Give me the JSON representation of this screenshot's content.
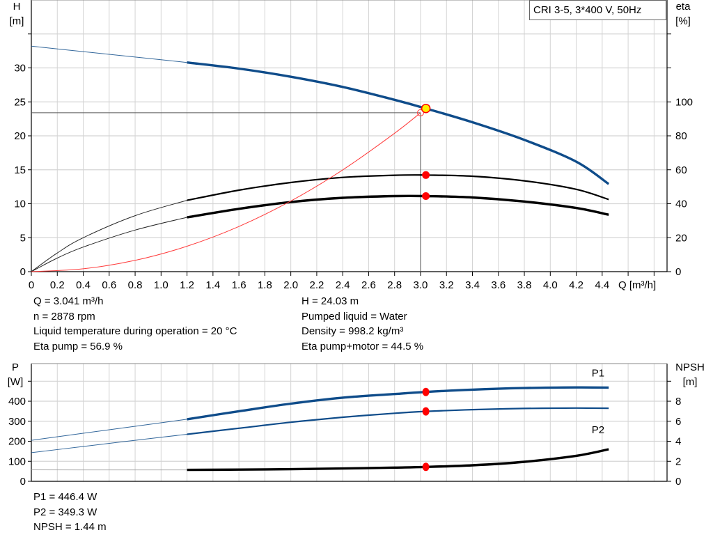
{
  "colors": {
    "head": "#0f4c8a",
    "power": "#0f4c8a",
    "eta": "#000000",
    "npsh": "#000000",
    "system": "#ff3b3b",
    "marker": "#ff0000",
    "operating_point_fill": "#ffee00",
    "grid": "#d4d4d4"
  },
  "chart_data": [
    {
      "type": "line",
      "title": "CRI 3-5, 3*400 V, 50Hz",
      "xlabel": "Q [m³/h]",
      "ylabel": [
        "H",
        "[m]"
      ],
      "y2label": [
        "eta",
        "[%]"
      ],
      "xlim": [
        0,
        4.9
      ],
      "ylim": [
        0,
        40
      ],
      "y2lim": [
        0,
        160
      ],
      "grid": true,
      "xticks": [
        "0",
        "0.2",
        "0.4",
        "0.6",
        "0.8",
        "1.0",
        "1.2",
        "1.4",
        "1.6",
        "1.8",
        "2.0",
        "2.2",
        "2.4",
        "2.6",
        "2.8",
        "3.0",
        "3.2",
        "3.4",
        "3.6",
        "3.8",
        "4.0",
        "4.2",
        "4.4"
      ],
      "yticks": [
        "0",
        "5",
        "10",
        "15",
        "20",
        "25",
        "30"
      ],
      "y2ticks": [
        "0",
        "20",
        "40",
        "60",
        "80",
        "100"
      ],
      "series": [
        {
          "key": "H",
          "axis": "left",
          "thick_from": 1.2,
          "x": [
            0,
            0.4,
            0.8,
            1.2,
            1.6,
            2.0,
            2.4,
            2.8,
            3.041,
            3.4,
            3.8,
            4.2,
            4.45
          ],
          "y": [
            33.2,
            32.4,
            31.6,
            30.8,
            29.9,
            28.7,
            27.2,
            25.3,
            24.03,
            22.0,
            19.4,
            16.2,
            12.9
          ]
        },
        {
          "key": "eta_pump",
          "axis": "right",
          "thick_from": 1.2,
          "x": [
            0,
            0.2,
            0.4,
            0.8,
            1.2,
            1.6,
            2.0,
            2.4,
            2.8,
            3.041,
            3.4,
            3.8,
            4.2,
            4.45
          ],
          "y": [
            0,
            11,
            20,
            33,
            42,
            48,
            52.5,
            55.5,
            56.8,
            56.9,
            56.2,
            53.5,
            48.5,
            42.5
          ]
        },
        {
          "key": "eta_pump_motor",
          "axis": "right",
          "thick_from": 1.2,
          "x": [
            0,
            0.2,
            0.4,
            0.8,
            1.2,
            1.6,
            2.0,
            2.4,
            2.8,
            3.041,
            3.4,
            3.8,
            4.2,
            4.45
          ],
          "y": [
            0,
            8,
            14.5,
            24.5,
            32,
            37,
            41,
            43.5,
            44.5,
            44.5,
            43.7,
            41.3,
            37.5,
            33.5
          ]
        },
        {
          "key": "system_curve",
          "axis": "left",
          "x": [
            0,
            0.4,
            0.8,
            1.2,
            1.6,
            2.0,
            2.4,
            2.8,
            3.0
          ],
          "y": [
            0,
            0.42,
            1.66,
            3.74,
            6.65,
            10.4,
            14.98,
            20.38,
            23.4
          ]
        }
      ],
      "guide_point": {
        "x": 3.0,
        "y": 23.4
      },
      "operating_point": {
        "x": 3.041,
        "H": 24.03,
        "eta_pump": 56.9,
        "eta_pump_motor": 44.5
      }
    },
    {
      "type": "line",
      "xlabel": "",
      "ylabel": [
        "P",
        "[W]"
      ],
      "y2label": [
        "NPSH",
        "[m]"
      ],
      "xlim": [
        0,
        4.9
      ],
      "ylim": [
        0,
        588
      ],
      "y2lim": [
        0,
        11.76
      ],
      "grid": true,
      "yticks": [
        "0",
        "100",
        "200",
        "300",
        "400"
      ],
      "y2ticks": [
        "0",
        "2",
        "4",
        "6",
        "8"
      ],
      "series": [
        {
          "key": "P1",
          "name": "P1",
          "axis": "left",
          "thick_from": 1.2,
          "x": [
            0,
            0.4,
            0.8,
            1.2,
            1.6,
            2.0,
            2.4,
            2.8,
            3.041,
            3.4,
            3.8,
            4.2,
            4.45
          ],
          "y": [
            205,
            240,
            275,
            310,
            350,
            388,
            418,
            436,
            446.4,
            458,
            466,
            469,
            468
          ]
        },
        {
          "key": "P2",
          "name": "P2",
          "axis": "left",
          "thick_from": 1.2,
          "x": [
            0,
            0.4,
            0.8,
            1.2,
            1.6,
            2.0,
            2.4,
            2.8,
            3.041,
            3.4,
            3.8,
            4.2,
            4.45
          ],
          "y": [
            143,
            174,
            205,
            235,
            265,
            295,
            320,
            340,
            349.3,
            358,
            364,
            366,
            365
          ]
        },
        {
          "key": "NPSH",
          "axis": "right",
          "thick_from": 1.2,
          "x": [
            0,
            0.6,
            1.2,
            1.6,
            2.0,
            2.4,
            2.8,
            3.041,
            3.4,
            3.8,
            4.2,
            4.45
          ],
          "y": [
            1.15,
            1.14,
            1.14,
            1.17,
            1.21,
            1.28,
            1.37,
            1.44,
            1.6,
            1.95,
            2.55,
            3.2
          ]
        }
      ],
      "operating_point": {
        "x": 3.041,
        "P1": 446.4,
        "P2": 349.3,
        "NPSH": 1.44
      }
    }
  ],
  "info": {
    "left": [
      "Q = 3.041 m³/h",
      "n = 2878 rpm",
      "Liquid temperature during operation = 20 °C",
      "Eta pump = 56.9 %"
    ],
    "right": [
      "H = 24.03 m",
      "Pumped liquid = Water",
      "Density = 998.2 kg/m³",
      "Eta pump+motor = 44.5 %"
    ],
    "power": [
      "P1 = 446.4 W",
      "P2 = 349.3 W",
      "NPSH = 1.44 m"
    ]
  }
}
